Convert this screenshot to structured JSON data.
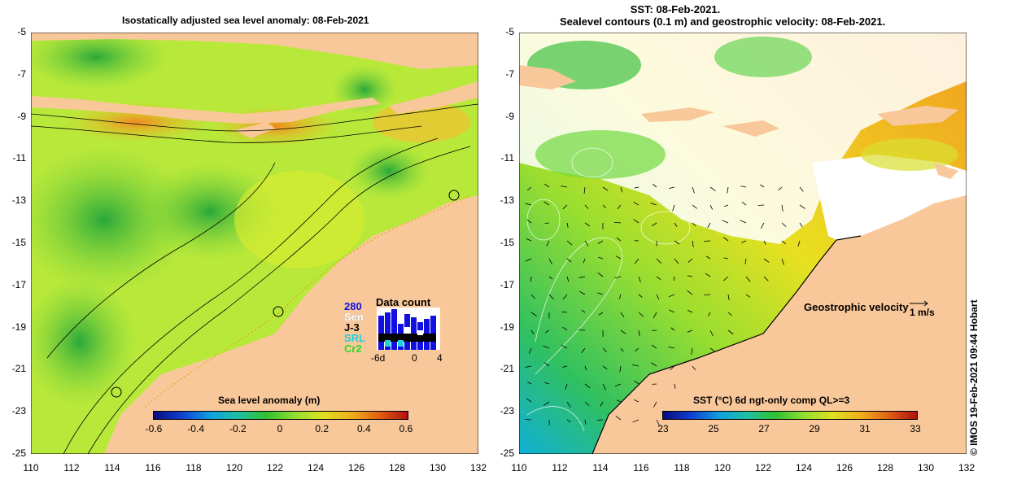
{
  "left_panel": {
    "title": "Isostatically adjusted sea level anomaly: 08-Feb-2021",
    "colorbar": {
      "label": "Sea level anomaly (m)",
      "ticks": [
        "-0.6",
        "-0.4",
        "-0.2",
        "0",
        "0.2",
        "0.4",
        "0.6"
      ],
      "range": [
        -0.6,
        0.6
      ]
    },
    "data_count": {
      "title": "Data count",
      "missions": [
        "280",
        "Sen",
        "J-3",
        "SRL",
        "Cr2"
      ],
      "mission_colors": [
        "#1010e0",
        "#ffffff",
        "#000000",
        "#20d0e0",
        "#20e020"
      ],
      "axis_labels": [
        "-6d",
        "0",
        "4"
      ]
    }
  },
  "right_panel": {
    "title_line1": "SST: 08-Feb-2021.",
    "title_line2": "Sealevel contours (0.1 m) and geostrophic velocity: 08-Feb-2021.",
    "colorbar": {
      "label": "SST (°C) 6d ngt-only comp QL>=3",
      "ticks": [
        "23",
        "25",
        "27",
        "29",
        "31",
        "33"
      ],
      "range": [
        23,
        33
      ]
    },
    "velocity_legend": {
      "label": "Geostrophic velocity",
      "scale": "1 m/s"
    }
  },
  "axes": {
    "y_ticks": [
      "-5",
      "-7",
      "-9",
      "-11",
      "-13",
      "-15",
      "-17",
      "-19",
      "-21",
      "-23",
      "-25"
    ],
    "x_ticks": [
      "110",
      "112",
      "114",
      "116",
      "118",
      "120",
      "122",
      "124",
      "126",
      "128",
      "130",
      "132"
    ]
  },
  "credit": "© IMOS 19-Feb-2021 09:44 Hobart",
  "colors": {
    "land": "#f9c89a",
    "no_data": "#ffffff",
    "coast": "#000000"
  }
}
